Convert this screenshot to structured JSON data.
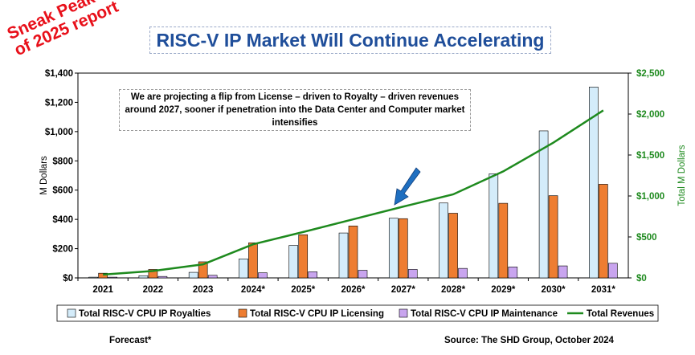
{
  "stamp": {
    "line1": "Sneak Peak",
    "line2": "of 2025 report"
  },
  "title": "RISC-V IP Market Will Continue Accelerating",
  "note": "We are projecting a flip from License – driven to Royalty – driven revenues around 2027, sooner if penetration into the Data Center and Computer market intensifies",
  "footer": {
    "forecast": "Forecast*",
    "source": "Source: The SHD Group, October 2024"
  },
  "colors": {
    "royalties": "#d4ecfa",
    "licensing": "#ee7d31",
    "maintenance": "#c9a5ef",
    "total": "#1e8a1e",
    "arrow": "#1f6fc0"
  },
  "chart_data": {
    "type": "bar",
    "categories": [
      "2021",
      "2022",
      "2023",
      "2024*",
      "2025*",
      "2026*",
      "2027*",
      "2028*",
      "2029*",
      "2030*",
      "2031*"
    ],
    "series": [
      {
        "name": "Total RISC-V CPU IP Royalties",
        "axis": "left",
        "values": [
          5,
          15,
          38,
          130,
          222,
          307,
          408,
          512,
          712,
          1005,
          1305
        ]
      },
      {
        "name": "Total RISC-V CPU IP Licensing",
        "axis": "left",
        "values": [
          32,
          58,
          110,
          240,
          295,
          355,
          405,
          442,
          510,
          562,
          640
        ]
      },
      {
        "name": "Total RISC-V CPU IP Maintenance",
        "axis": "left",
        "values": [
          5,
          10,
          18,
          35,
          42,
          52,
          58,
          65,
          75,
          82,
          100
        ]
      },
      {
        "name": "Total Revenues",
        "type": "line",
        "axis": "right",
        "values": [
          40,
          85,
          165,
          410,
          560,
          715,
          870,
          1020,
          1300,
          1650,
          2045
        ]
      }
    ],
    "ylabel": "M Dollars",
    "ylabel_right": "Total M Dollars",
    "ylim": [
      0,
      1400
    ],
    "ylim_right": [
      0,
      2500
    ],
    "yticks": [
      "$0",
      "$200",
      "$400",
      "$600",
      "$800",
      "$1,000",
      "$1,200",
      "$1,400"
    ],
    "yticks_right": [
      "$0",
      "$500",
      "$1,000",
      "$1,500",
      "$2,000",
      "$2,500"
    ],
    "legend": "bottom",
    "grid": false
  }
}
